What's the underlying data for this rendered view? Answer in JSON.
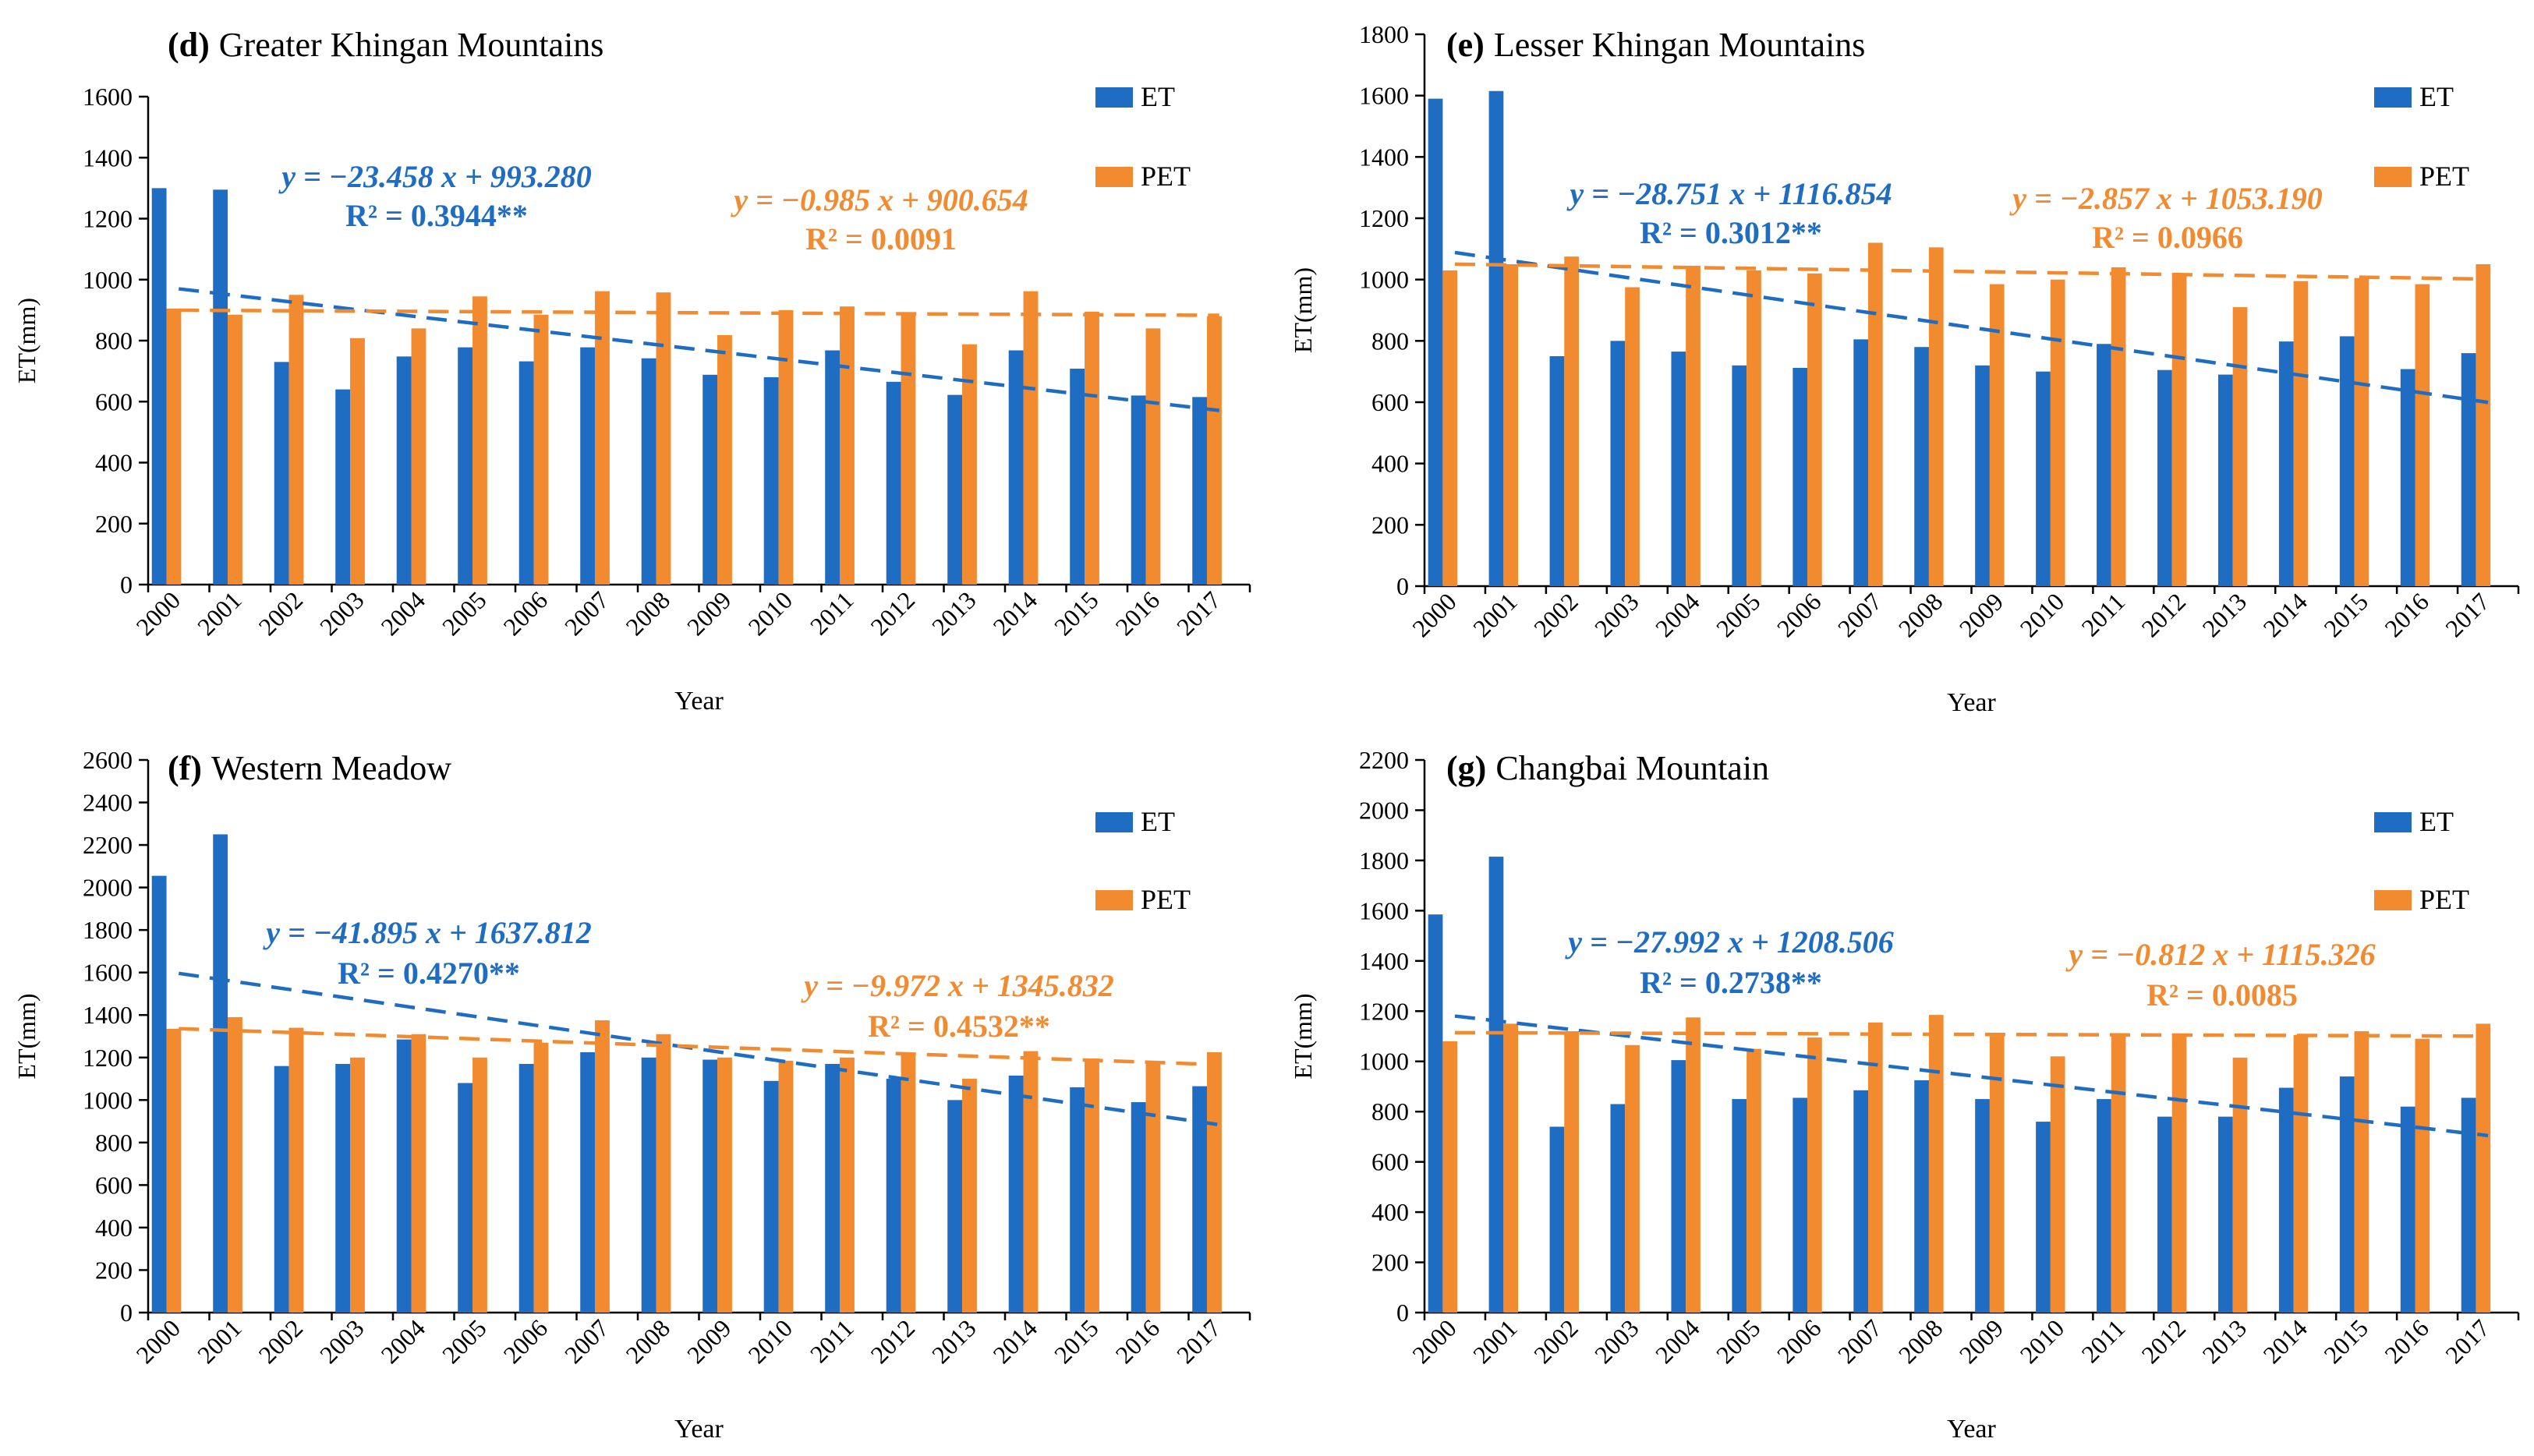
{
  "colors": {
    "et": "#1f6dc2",
    "pet": "#f28a30",
    "et_text": "#1f6dc2",
    "pet_text": "#f28a30",
    "axis": "#000000"
  },
  "chart_data": [
    {
      "id": "d",
      "type": "bar",
      "panel_letter": "(d)",
      "title": "Greater Khingan Mountains",
      "xlabel": "Year",
      "ylabel": "ET(mm)",
      "ylim": [
        0,
        1600
      ],
      "ytick_step": 200,
      "categories": [
        "2000",
        "2001",
        "2002",
        "2003",
        "2004",
        "2005",
        "2006",
        "2007",
        "2008",
        "2009",
        "2010",
        "2011",
        "2012",
        "2013",
        "2014",
        "2015",
        "2016",
        "2017"
      ],
      "series": [
        {
          "name": "ET",
          "values": [
            1300,
            1295,
            730,
            640,
            748,
            778,
            732,
            778,
            742,
            688,
            680,
            768,
            665,
            622,
            768,
            708,
            620,
            615
          ]
        },
        {
          "name": "PET",
          "values": [
            905,
            885,
            950,
            808,
            840,
            945,
            885,
            962,
            958,
            818,
            900,
            912,
            888,
            788,
            962,
            895,
            840,
            880
          ]
        }
      ],
      "trends": [
        {
          "series": "ET",
          "equation": "y = −23.458 x + 993.280",
          "r2_label": "R² = 0.3944**",
          "slope": -23.458,
          "intercept": 993.28
        },
        {
          "series": "PET",
          "equation": "y = −0.985 x + 900.654",
          "r2_label": "R² = 0.0091",
          "slope": -0.985,
          "intercept": 900.654
        }
      ]
    },
    {
      "id": "e",
      "type": "bar",
      "panel_letter": "(e)",
      "title": "Lesser Khingan Mountains",
      "xlabel": "Year",
      "ylabel": "ET(mm)",
      "ylim": [
        0,
        1800
      ],
      "ytick_step": 200,
      "categories": [
        "2000",
        "2001",
        "2002",
        "2003",
        "2004",
        "2005",
        "2006",
        "2007",
        "2008",
        "2009",
        "2010",
        "2011",
        "2012",
        "2013",
        "2014",
        "2015",
        "2016",
        "2017"
      ],
      "series": [
        {
          "name": "ET",
          "values": [
            1590,
            1615,
            750,
            800,
            765,
            720,
            712,
            805,
            780,
            720,
            700,
            790,
            705,
            690,
            798,
            815,
            708,
            760
          ]
        },
        {
          "name": "PET",
          "values": [
            1030,
            1050,
            1075,
            975,
            1045,
            1030,
            1020,
            1120,
            1105,
            985,
            1000,
            1040,
            1020,
            910,
            995,
            1005,
            985,
            1050
          ]
        }
      ],
      "trends": [
        {
          "series": "ET",
          "equation": "y = −28.751 x + 1116.854",
          "r2_label": "R² = 0.3012**",
          "slope": -28.751,
          "intercept": 1116.854
        },
        {
          "series": "PET",
          "equation": "y = −2.857 x + 1053.190",
          "r2_label": "R² = 0.0966",
          "slope": -2.857,
          "intercept": 1053.19
        }
      ]
    },
    {
      "id": "f",
      "type": "bar",
      "panel_letter": "(f)",
      "title": "Western Meadow",
      "xlabel": "Year",
      "ylabel": "ET(mm)",
      "ylim": [
        0,
        2600
      ],
      "ytick_step": 200,
      "categories": [
        "2000",
        "2001",
        "2002",
        "2003",
        "2004",
        "2005",
        "2006",
        "2007",
        "2008",
        "2009",
        "2010",
        "2011",
        "2012",
        "2013",
        "2014",
        "2015",
        "2016",
        "2017"
      ],
      "series": [
        {
          "name": "ET",
          "values": [
            2055,
            2250,
            1160,
            1170,
            1285,
            1080,
            1170,
            1225,
            1200,
            1190,
            1090,
            1170,
            1100,
            1000,
            1115,
            1060,
            990,
            1065
          ]
        },
        {
          "name": "PET",
          "values": [
            1335,
            1390,
            1340,
            1200,
            1310,
            1200,
            1270,
            1375,
            1310,
            1200,
            1185,
            1200,
            1215,
            1100,
            1230,
            1195,
            1175,
            1225
          ]
        }
      ],
      "trends": [
        {
          "series": "ET",
          "equation": "y = −41.895 x + 1637.812",
          "r2_label": "R² = 0.4270**",
          "slope": -41.895,
          "intercept": 1637.812
        },
        {
          "series": "PET",
          "equation": "y = −9.972 x + 1345.832",
          "r2_label": "R² = 0.4532**",
          "slope": -9.972,
          "intercept": 1345.832
        }
      ]
    },
    {
      "id": "g",
      "type": "bar",
      "panel_letter": "(g)",
      "title": "Changbai Mountain",
      "xlabel": "Year",
      "ylabel": "ET(mm)",
      "ylim": [
        0,
        2200
      ],
      "ytick_step": 200,
      "categories": [
        "2000",
        "2001",
        "2002",
        "2003",
        "2004",
        "2005",
        "2006",
        "2007",
        "2008",
        "2009",
        "2010",
        "2011",
        "2012",
        "2013",
        "2014",
        "2015",
        "2016",
        "2017"
      ],
      "series": [
        {
          "name": "ET",
          "values": [
            1585,
            1815,
            740,
            830,
            1005,
            850,
            855,
            885,
            925,
            850,
            760,
            850,
            780,
            780,
            895,
            940,
            820,
            855
          ]
        },
        {
          "name": "PET",
          "values": [
            1080,
            1150,
            1120,
            1065,
            1175,
            1050,
            1095,
            1155,
            1185,
            1100,
            1020,
            1110,
            1110,
            1015,
            1105,
            1120,
            1090,
            1150
          ]
        }
      ],
      "trends": [
        {
          "series": "ET",
          "equation": "y = −27.992 x + 1208.506",
          "r2_label": "R² = 0.2738**",
          "slope": -27.992,
          "intercept": 1208.506
        },
        {
          "series": "PET",
          "equation": "y = −0.812 x + 1115.326",
          "r2_label": "R² = 0.0085",
          "slope": -0.812,
          "intercept": 1115.326
        }
      ]
    }
  ]
}
